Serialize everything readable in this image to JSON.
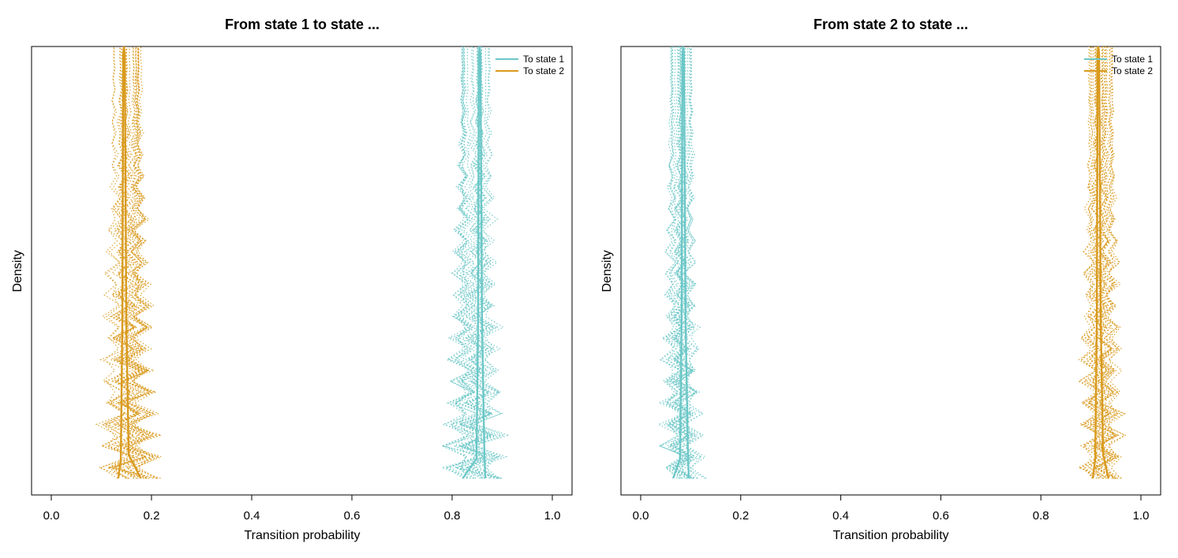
{
  "colors": {
    "state1": "#6CC7C7",
    "state2": "#D99A1E"
  },
  "chart_data": [
    {
      "type": "density",
      "title": "From state 1 to state ...",
      "xlabel": "Transition probability",
      "ylabel": "Density",
      "xlim": [
        0,
        1
      ],
      "x_ticks": [
        "0.0",
        "0.2",
        "0.4",
        "0.6",
        "0.8",
        "1.0"
      ],
      "y_ticks_shown": false,
      "legend": {
        "placement": "top-right",
        "entries": [
          "To state 1",
          "To state 2"
        ]
      },
      "series": [
        {
          "name": "To state 1",
          "color": "#6CC7C7",
          "posterior_mode": 0.855,
          "support": [
            0.78,
            0.88
          ],
          "draw_modes_range": [
            0.82,
            0.875
          ]
        },
        {
          "name": "To state 2",
          "color": "#D99A1E",
          "posterior_mode": 0.145,
          "support": [
            0.12,
            0.22
          ],
          "draw_modes_range": [
            0.125,
            0.18
          ]
        }
      ]
    },
    {
      "type": "density",
      "title": "From state 2 to state ...",
      "xlabel": "Transition probability",
      "ylabel": "Density",
      "xlim": [
        0,
        1
      ],
      "x_ticks": [
        "0.0",
        "0.2",
        "0.4",
        "0.6",
        "0.8",
        "1.0"
      ],
      "y_ticks_shown": false,
      "legend": {
        "placement": "top-right",
        "entries": [
          "To state 1",
          "To state 2"
        ]
      },
      "series": [
        {
          "name": "To state 1",
          "color": "#6CC7C7",
          "posterior_mode": 0.085,
          "support": [
            0.04,
            0.11
          ],
          "draw_modes_range": [
            0.055,
            0.105
          ]
        },
        {
          "name": "To state 2",
          "color": "#D99A1E",
          "posterior_mode": 0.915,
          "support": [
            0.89,
            0.96
          ],
          "draw_modes_range": [
            0.895,
            0.945
          ]
        }
      ]
    }
  ]
}
